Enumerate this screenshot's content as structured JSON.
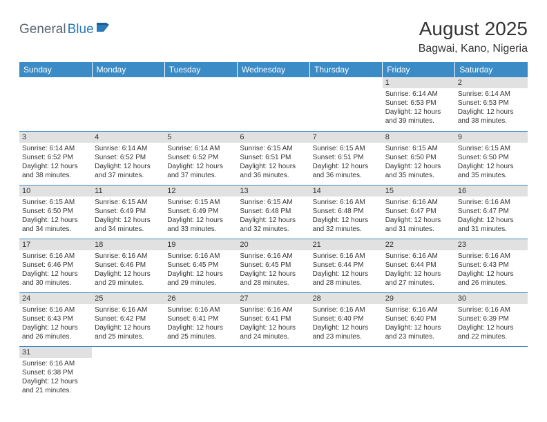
{
  "logo": {
    "general": "General",
    "blue": "Blue"
  },
  "title": "August 2025",
  "location": "Bagwai, Kano, Nigeria",
  "colors": {
    "header_bg": "#3b8bc7",
    "header_text": "#ffffff",
    "daynum_bg": "#e1e1e1",
    "border": "#3b8bc7",
    "text": "#333333",
    "logo_gray": "#5a6670",
    "logo_blue": "#2a79b8"
  },
  "weekdays": [
    "Sunday",
    "Monday",
    "Tuesday",
    "Wednesday",
    "Thursday",
    "Friday",
    "Saturday"
  ],
  "weeks": [
    [
      {
        "n": "",
        "sr": "",
        "ss": "",
        "dl": ""
      },
      {
        "n": "",
        "sr": "",
        "ss": "",
        "dl": ""
      },
      {
        "n": "",
        "sr": "",
        "ss": "",
        "dl": ""
      },
      {
        "n": "",
        "sr": "",
        "ss": "",
        "dl": ""
      },
      {
        "n": "",
        "sr": "",
        "ss": "",
        "dl": ""
      },
      {
        "n": "1",
        "sr": "Sunrise: 6:14 AM",
        "ss": "Sunset: 6:53 PM",
        "dl": "Daylight: 12 hours and 39 minutes."
      },
      {
        "n": "2",
        "sr": "Sunrise: 6:14 AM",
        "ss": "Sunset: 6:53 PM",
        "dl": "Daylight: 12 hours and 38 minutes."
      }
    ],
    [
      {
        "n": "3",
        "sr": "Sunrise: 6:14 AM",
        "ss": "Sunset: 6:52 PM",
        "dl": "Daylight: 12 hours and 38 minutes."
      },
      {
        "n": "4",
        "sr": "Sunrise: 6:14 AM",
        "ss": "Sunset: 6:52 PM",
        "dl": "Daylight: 12 hours and 37 minutes."
      },
      {
        "n": "5",
        "sr": "Sunrise: 6:14 AM",
        "ss": "Sunset: 6:52 PM",
        "dl": "Daylight: 12 hours and 37 minutes."
      },
      {
        "n": "6",
        "sr": "Sunrise: 6:15 AM",
        "ss": "Sunset: 6:51 PM",
        "dl": "Daylight: 12 hours and 36 minutes."
      },
      {
        "n": "7",
        "sr": "Sunrise: 6:15 AM",
        "ss": "Sunset: 6:51 PM",
        "dl": "Daylight: 12 hours and 36 minutes."
      },
      {
        "n": "8",
        "sr": "Sunrise: 6:15 AM",
        "ss": "Sunset: 6:50 PM",
        "dl": "Daylight: 12 hours and 35 minutes."
      },
      {
        "n": "9",
        "sr": "Sunrise: 6:15 AM",
        "ss": "Sunset: 6:50 PM",
        "dl": "Daylight: 12 hours and 35 minutes."
      }
    ],
    [
      {
        "n": "10",
        "sr": "Sunrise: 6:15 AM",
        "ss": "Sunset: 6:50 PM",
        "dl": "Daylight: 12 hours and 34 minutes."
      },
      {
        "n": "11",
        "sr": "Sunrise: 6:15 AM",
        "ss": "Sunset: 6:49 PM",
        "dl": "Daylight: 12 hours and 34 minutes."
      },
      {
        "n": "12",
        "sr": "Sunrise: 6:15 AM",
        "ss": "Sunset: 6:49 PM",
        "dl": "Daylight: 12 hours and 33 minutes."
      },
      {
        "n": "13",
        "sr": "Sunrise: 6:15 AM",
        "ss": "Sunset: 6:48 PM",
        "dl": "Daylight: 12 hours and 32 minutes."
      },
      {
        "n": "14",
        "sr": "Sunrise: 6:16 AM",
        "ss": "Sunset: 6:48 PM",
        "dl": "Daylight: 12 hours and 32 minutes."
      },
      {
        "n": "15",
        "sr": "Sunrise: 6:16 AM",
        "ss": "Sunset: 6:47 PM",
        "dl": "Daylight: 12 hours and 31 minutes."
      },
      {
        "n": "16",
        "sr": "Sunrise: 6:16 AM",
        "ss": "Sunset: 6:47 PM",
        "dl": "Daylight: 12 hours and 31 minutes."
      }
    ],
    [
      {
        "n": "17",
        "sr": "Sunrise: 6:16 AM",
        "ss": "Sunset: 6:46 PM",
        "dl": "Daylight: 12 hours and 30 minutes."
      },
      {
        "n": "18",
        "sr": "Sunrise: 6:16 AM",
        "ss": "Sunset: 6:46 PM",
        "dl": "Daylight: 12 hours and 29 minutes."
      },
      {
        "n": "19",
        "sr": "Sunrise: 6:16 AM",
        "ss": "Sunset: 6:45 PM",
        "dl": "Daylight: 12 hours and 29 minutes."
      },
      {
        "n": "20",
        "sr": "Sunrise: 6:16 AM",
        "ss": "Sunset: 6:45 PM",
        "dl": "Daylight: 12 hours and 28 minutes."
      },
      {
        "n": "21",
        "sr": "Sunrise: 6:16 AM",
        "ss": "Sunset: 6:44 PM",
        "dl": "Daylight: 12 hours and 28 minutes."
      },
      {
        "n": "22",
        "sr": "Sunrise: 6:16 AM",
        "ss": "Sunset: 6:44 PM",
        "dl": "Daylight: 12 hours and 27 minutes."
      },
      {
        "n": "23",
        "sr": "Sunrise: 6:16 AM",
        "ss": "Sunset: 6:43 PM",
        "dl": "Daylight: 12 hours and 26 minutes."
      }
    ],
    [
      {
        "n": "24",
        "sr": "Sunrise: 6:16 AM",
        "ss": "Sunset: 6:43 PM",
        "dl": "Daylight: 12 hours and 26 minutes."
      },
      {
        "n": "25",
        "sr": "Sunrise: 6:16 AM",
        "ss": "Sunset: 6:42 PM",
        "dl": "Daylight: 12 hours and 25 minutes."
      },
      {
        "n": "26",
        "sr": "Sunrise: 6:16 AM",
        "ss": "Sunset: 6:41 PM",
        "dl": "Daylight: 12 hours and 25 minutes."
      },
      {
        "n": "27",
        "sr": "Sunrise: 6:16 AM",
        "ss": "Sunset: 6:41 PM",
        "dl": "Daylight: 12 hours and 24 minutes."
      },
      {
        "n": "28",
        "sr": "Sunrise: 6:16 AM",
        "ss": "Sunset: 6:40 PM",
        "dl": "Daylight: 12 hours and 23 minutes."
      },
      {
        "n": "29",
        "sr": "Sunrise: 6:16 AM",
        "ss": "Sunset: 6:40 PM",
        "dl": "Daylight: 12 hours and 23 minutes."
      },
      {
        "n": "30",
        "sr": "Sunrise: 6:16 AM",
        "ss": "Sunset: 6:39 PM",
        "dl": "Daylight: 12 hours and 22 minutes."
      }
    ],
    [
      {
        "n": "31",
        "sr": "Sunrise: 6:16 AM",
        "ss": "Sunset: 6:38 PM",
        "dl": "Daylight: 12 hours and 21 minutes."
      },
      {
        "n": "",
        "sr": "",
        "ss": "",
        "dl": ""
      },
      {
        "n": "",
        "sr": "",
        "ss": "",
        "dl": ""
      },
      {
        "n": "",
        "sr": "",
        "ss": "",
        "dl": ""
      },
      {
        "n": "",
        "sr": "",
        "ss": "",
        "dl": ""
      },
      {
        "n": "",
        "sr": "",
        "ss": "",
        "dl": ""
      },
      {
        "n": "",
        "sr": "",
        "ss": "",
        "dl": ""
      }
    ]
  ]
}
